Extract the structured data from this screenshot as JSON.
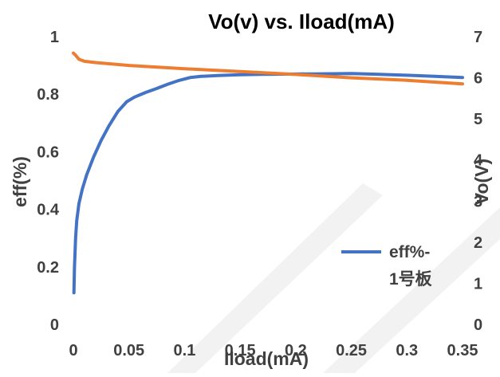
{
  "chart_data": {
    "type": "line",
    "title": "Vo(v) vs. Iload(mA)",
    "xlabel": "Iload(mA)",
    "ylabel": "eff(%)",
    "y2label": "Vo(V)",
    "xlim": [
      0,
      0.35
    ],
    "ylim": [
      0,
      1
    ],
    "y2lim": [
      0,
      7
    ],
    "x_ticks": [
      "0",
      "0.05",
      "0.1",
      "0.15",
      "0.2",
      "0.25",
      "0.3",
      "0.35"
    ],
    "y_ticks": [
      "0",
      "0.2",
      "0.4",
      "0.6",
      "0.8",
      "1"
    ],
    "y2_ticks": [
      "0",
      "1",
      "2",
      "3",
      "4",
      "5",
      "6",
      "7"
    ],
    "grid": false,
    "legend_position": "right",
    "series": [
      {
        "name": "eff%-1号板",
        "axis": "left",
        "color": "#4472C4",
        "x": [
          0.0005,
          0.001,
          0.002,
          0.003,
          0.005,
          0.008,
          0.012,
          0.018,
          0.025,
          0.032,
          0.04,
          0.048,
          0.055,
          0.065,
          0.075,
          0.085,
          0.095,
          0.105,
          0.115,
          0.13,
          0.15,
          0.17,
          0.2,
          0.225,
          0.25,
          0.275,
          0.3,
          0.325,
          0.35
        ],
        "values": [
          0.11,
          0.2,
          0.3,
          0.36,
          0.42,
          0.47,
          0.52,
          0.58,
          0.64,
          0.69,
          0.74,
          0.774,
          0.79,
          0.806,
          0.82,
          0.835,
          0.848,
          0.858,
          0.862,
          0.865,
          0.868,
          0.869,
          0.87,
          0.871,
          0.872,
          0.869,
          0.866,
          0.862,
          0.858
        ]
      },
      {
        "name": "",
        "axis": "right",
        "color": "#ED7D31",
        "x": [
          0,
          0.002,
          0.005,
          0.01,
          0.02,
          0.05,
          0.1,
          0.15,
          0.2,
          0.25,
          0.3,
          0.35
        ],
        "values": [
          6.6,
          6.55,
          6.45,
          6.4,
          6.37,
          6.3,
          6.22,
          6.15,
          6.08,
          6.0,
          5.94,
          5.85
        ]
      }
    ]
  }
}
